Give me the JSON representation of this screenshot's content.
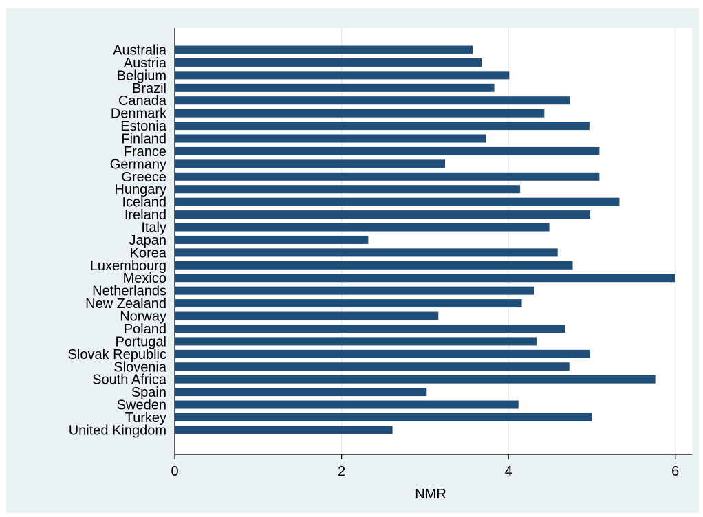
{
  "chart_data": {
    "type": "bar",
    "orientation": "horizontal",
    "xlabel": "NMR",
    "ylabel": "",
    "xlim": [
      0,
      6.2
    ],
    "xticks": [
      "0",
      "2",
      "4",
      "6"
    ],
    "grid": true,
    "bar_color": "#1f4e79",
    "plot_background": "#ffffff",
    "outer_background": "#eaf1f3",
    "categories": [
      "Australia",
      "Austria",
      "Belgium",
      "Brazil",
      "Canada",
      "Denmark",
      "Estonia",
      "Finland",
      "France",
      "Germany",
      "Greece",
      "Hungary",
      "Iceland",
      "Ireland",
      "Italy",
      "Japan",
      "Korea",
      "Luxembourg",
      "Mexico",
      "Netherlands",
      "New Zealand",
      "Norway",
      "Poland",
      "Portugal",
      "Slovak Republic",
      "Slovenia",
      "South Africa",
      "Spain",
      "Sweden",
      "Turkey",
      "United Kingdom"
    ],
    "values": [
      3.57,
      3.68,
      4.01,
      3.83,
      4.74,
      4.43,
      4.97,
      3.73,
      5.09,
      3.24,
      5.09,
      4.14,
      5.33,
      4.98,
      4.49,
      2.32,
      4.59,
      4.77,
      6.0,
      4.31,
      4.16,
      3.16,
      4.68,
      4.34,
      4.98,
      4.73,
      5.76,
      3.02,
      4.12,
      5.0,
      2.61
    ]
  }
}
